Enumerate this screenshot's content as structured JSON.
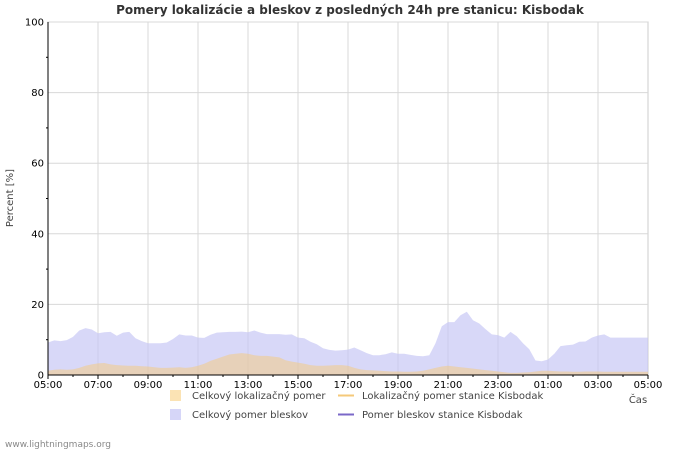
{
  "chart_data": {
    "type": "area",
    "title": "Pomery lokalizácie a bleskov z posledných 24h pre stanicu: Kisbodak",
    "ylabel": "Percent   [%]",
    "xlabel": "Čas",
    "ylim": [
      0,
      100
    ],
    "y_ticks": [
      "0",
      "20",
      "40",
      "60",
      "80",
      "100"
    ],
    "x_ticks": [
      "05:00",
      "07:00",
      "09:00",
      "11:00",
      "13:00",
      "15:00",
      "17:00",
      "19:00",
      "21:00",
      "23:00",
      "01:00",
      "03:00",
      "05:00"
    ],
    "x_hours": [
      0,
      0.25,
      0.5,
      0.75,
      1,
      1.25,
      1.5,
      1.75,
      2,
      2.25,
      2.5,
      2.75,
      3,
      3.25,
      3.5,
      3.75,
      4,
      4.25,
      4.5,
      4.75,
      5,
      5.25,
      5.5,
      5.75,
      6,
      6.25,
      6.5,
      6.75,
      7,
      7.25,
      7.5,
      7.75,
      8,
      8.25,
      8.5,
      8.75,
      9,
      9.25,
      9.5,
      9.75,
      10,
      10.25,
      10.5,
      10.75,
      11,
      11.25,
      11.5,
      11.75,
      12,
      12.25,
      12.5,
      12.75,
      13,
      13.25,
      13.5,
      13.75,
      14,
      14.25,
      14.5,
      14.75,
      15,
      15.25,
      15.5,
      15.75,
      16,
      16.25,
      16.5,
      16.75,
      17,
      17.25,
      17.5,
      17.75,
      18,
      18.25,
      18.5,
      18.75,
      19,
      19.25,
      19.5,
      19.75,
      20,
      20.25,
      20.5,
      20.75,
      21,
      21.25,
      21.5,
      21.75,
      22,
      22.25,
      22.5,
      22.75,
      23,
      23.25,
      23.5,
      23.75,
      24
    ],
    "series": [
      {
        "name": "Celkový lokalizačný pomer",
        "kind": "area",
        "color": "#f5c97a",
        "opacity": 0.5,
        "values": [
          1.2,
          1.5,
          1.6,
          1.5,
          1.6,
          2.0,
          2.6,
          3.0,
          3.3,
          3.4,
          3.0,
          2.8,
          2.7,
          2.6,
          2.6,
          2.5,
          2.4,
          2.2,
          2.0,
          2.0,
          2.1,
          2.2,
          2.0,
          2.2,
          2.6,
          3.2,
          4.0,
          4.6,
          5.2,
          5.8,
          6.0,
          6.2,
          6.0,
          5.6,
          5.4,
          5.4,
          5.2,
          5.0,
          4.2,
          3.8,
          3.5,
          3.2,
          2.8,
          2.6,
          2.6,
          2.7,
          2.8,
          2.8,
          2.6,
          2.0,
          1.6,
          1.4,
          1.3,
          1.2,
          1.1,
          1.0,
          1.0,
          0.9,
          0.9,
          1.0,
          1.2,
          1.6,
          2.0,
          2.4,
          2.6,
          2.4,
          2.2,
          2.0,
          1.8,
          1.6,
          1.4,
          1.2,
          1.0,
          0.8,
          0.6,
          0.6,
          0.7,
          0.8,
          1.0,
          1.2,
          1.2,
          1.1,
          1.0,
          1.0,
          0.9,
          0.9,
          1.0,
          1.0,
          1.0,
          0.9,
          0.9,
          0.9,
          0.9,
          0.9,
          0.9,
          0.9,
          0.9
        ]
      },
      {
        "name": "Lokalizačný pomer stanice Kisbodak",
        "kind": "line",
        "color": "#f5c97a",
        "values": []
      },
      {
        "name": "Celkový pomer bleskov",
        "kind": "area",
        "color": "#c8c8f5",
        "opacity": 0.7,
        "values": [
          9.2,
          9.8,
          9.6,
          9.9,
          10.8,
          12.6,
          13.3,
          12.9,
          11.8,
          12.1,
          12.2,
          11.1,
          12.0,
          12.2,
          10.4,
          9.6,
          9.0,
          9.0,
          9.0,
          9.2,
          10.2,
          11.5,
          11.2,
          11.2,
          10.6,
          10.5,
          11.4,
          12.0,
          12.1,
          12.2,
          12.2,
          12.3,
          12.1,
          12.6,
          12.0,
          11.6,
          11.6,
          11.6,
          11.4,
          11.5,
          10.6,
          10.4,
          9.4,
          8.7,
          7.6,
          7.1,
          6.9,
          7.0,
          7.2,
          7.8,
          7.0,
          6.2,
          5.6,
          5.6,
          5.9,
          6.4,
          6.0,
          6.0,
          5.7,
          5.4,
          5.3,
          5.6,
          9.0,
          13.8,
          15.0,
          15.0,
          16.9,
          17.9,
          15.5,
          14.6,
          13.0,
          11.5,
          11.3,
          10.6,
          12.2,
          11.0,
          9.0,
          7.3,
          4.1,
          3.9,
          4.4,
          6.0,
          8.2,
          8.4,
          8.6,
          9.4,
          9.5,
          10.6,
          11.2,
          11.5,
          10.6,
          10.6,
          10.6,
          10.6,
          10.6,
          10.6,
          10.6
        ]
      },
      {
        "name": "Pomer bleskov stanice Kisbodak",
        "kind": "line",
        "color": "#7b68c8",
        "values": []
      }
    ],
    "legend_items": [
      {
        "name": "Celkový lokalizačný pomer",
        "swatch": "box",
        "color": "#fbe3b4"
      },
      {
        "name": "Lokalizačný pomer stanice Kisbodak",
        "swatch": "line",
        "color": "#f5c97a"
      },
      {
        "name": "Celkový pomer bleskov",
        "swatch": "box",
        "color": "#d6d6f8"
      },
      {
        "name": "Pomer bleskov stanice Kisbodak",
        "swatch": "line",
        "color": "#7b68c8"
      }
    ],
    "grid": true,
    "legend_position": "bottom"
  },
  "footer": {
    "text": "www.lightningmaps.org"
  }
}
